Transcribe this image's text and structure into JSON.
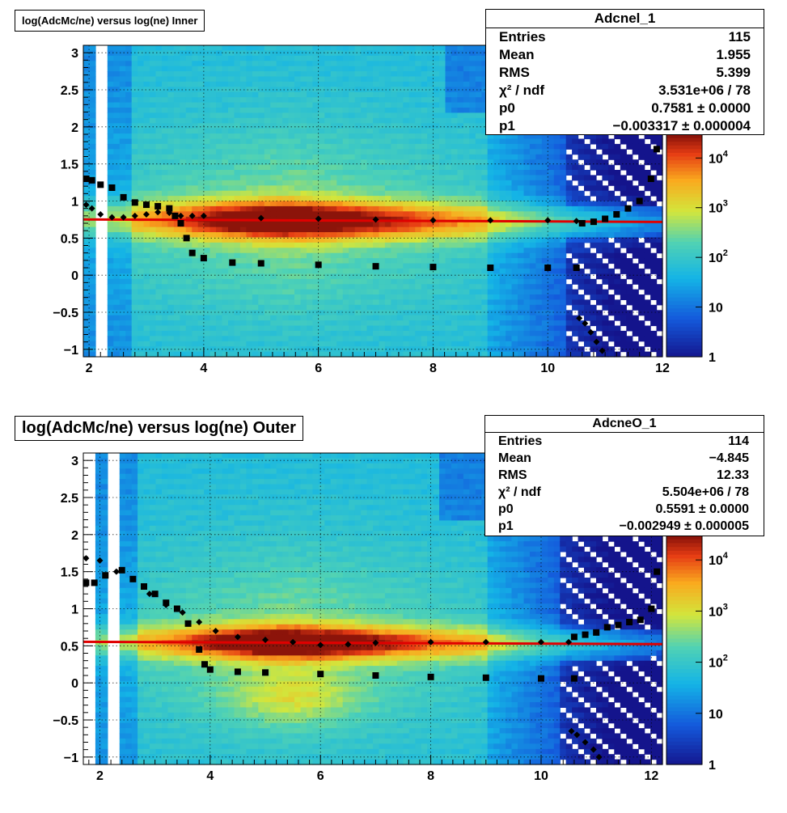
{
  "pads": [
    {
      "id": "inner",
      "title": "log(AdcMc/ne) versus log(ne) Inner",
      "stats": {
        "name": "Adcnel_1",
        "rows": [
          {
            "key": "Entries",
            "value": "115"
          },
          {
            "key": "Mean",
            "value": "1.955"
          },
          {
            "key": "RMS",
            "value": "5.399"
          },
          {
            "key": "χ² / ndf",
            "value": "3.531e+06 / 78"
          },
          {
            "key": "p0",
            "value": "0.7581 ± 0.0000"
          },
          {
            "key": "p1",
            "value": "−0.003317 ± 0.000004"
          }
        ]
      }
    },
    {
      "id": "outer",
      "title": "log(AdcMc/ne) versus log(ne) Outer",
      "stats": {
        "name": "AdcneO_1",
        "rows": [
          {
            "key": "Entries",
            "value": "114"
          },
          {
            "key": "Mean",
            "value": "−4.845"
          },
          {
            "key": "RMS",
            "value": "12.33"
          },
          {
            "key": "χ² / ndf",
            "value": "5.504e+06 / 78"
          },
          {
            "key": "p0",
            "value": "0.5591 ± 0.0000"
          },
          {
            "key": "p1",
            "value": "−0.002949 ± 0.000005"
          }
        ]
      }
    }
  ],
  "chart_data": [
    {
      "type": "heatmap",
      "title": "log(AdcMc/ne) versus log(ne) Inner",
      "xlim": [
        1.9,
        12.0
      ],
      "ylim": [
        -1.1,
        3.1
      ],
      "x_ticks": [
        "2",
        "4",
        "6",
        "8",
        "10",
        "12"
      ],
      "y_ticks": [
        "3",
        "2.5",
        "2",
        "1.5",
        "1",
        "0.5",
        "0",
        "−0.5",
        "−1"
      ],
      "colorbar": {
        "scale": "log",
        "range": [
          1,
          30000
        ],
        "tick_labels": [
          "1",
          "10",
          "10²",
          "10³",
          "10⁴"
        ]
      },
      "grid": true,
      "fit": {
        "function": "pol1",
        "p0": 0.7581,
        "p1": -0.003317,
        "color": "#e00000"
      },
      "series": [
        {
          "marker": "square",
          "x": [
            1.95,
            2.05,
            2.2,
            2.4,
            2.6,
            2.8,
            3.0,
            3.2,
            3.4,
            3.5,
            3.6,
            3.7,
            3.8,
            4.0,
            4.5,
            5.0,
            6.0,
            7.0,
            8.0,
            9.0,
            10.0,
            10.5
          ],
          "y": [
            1.3,
            1.28,
            1.22,
            1.18,
            1.05,
            0.98,
            0.95,
            0.93,
            0.9,
            0.8,
            0.7,
            0.5,
            0.3,
            0.23,
            0.17,
            0.16,
            0.14,
            0.12,
            0.11,
            0.1,
            0.1,
            0.1
          ]
        },
        {
          "marker": "diamond",
          "x": [
            1.95,
            2.05,
            2.2,
            2.4,
            2.6,
            2.8,
            3.0,
            3.2,
            3.4,
            3.6,
            3.8,
            4.0,
            5.0,
            6.0,
            7.0,
            8.0,
            9.0,
            10.0,
            10.5
          ],
          "y": [
            0.95,
            0.9,
            0.82,
            0.78,
            0.78,
            0.8,
            0.82,
            0.85,
            0.84,
            0.8,
            0.8,
            0.8,
            0.77,
            0.76,
            0.75,
            0.74,
            0.74,
            0.74,
            0.73
          ]
        },
        {
          "marker": "square",
          "x": [
            10.6,
            10.8,
            11.0,
            11.2,
            11.4,
            11.6,
            11.8,
            11.9
          ],
          "y": [
            0.7,
            0.72,
            0.76,
            0.82,
            0.9,
            1.0,
            1.3,
            1.7
          ]
        },
        {
          "marker": "diamond",
          "x": [
            10.55,
            10.65,
            10.75,
            10.85,
            10.95
          ],
          "y": [
            -0.58,
            -0.65,
            -0.77,
            -0.9,
            -1.02
          ]
        }
      ]
    },
    {
      "type": "heatmap",
      "title": "log(AdcMc/ne) versus log(ne) Outer",
      "xlim": [
        1.7,
        12.2
      ],
      "ylim": [
        -1.1,
        3.1
      ],
      "x_ticks": [
        "2",
        "4",
        "6",
        "8",
        "10",
        "12"
      ],
      "y_ticks": [
        "3",
        "2.5",
        "2",
        "1.5",
        "1",
        "0.5",
        "0",
        "−0.5",
        "−1"
      ],
      "colorbar": {
        "scale": "log",
        "range": [
          1,
          30000
        ],
        "tick_labels": [
          "1",
          "10",
          "10²",
          "10³",
          "10⁴"
        ]
      },
      "grid": true,
      "fit": {
        "function": "pol1",
        "p0": 0.5591,
        "p1": -0.002949,
        "color": "#e00000"
      },
      "series": [
        {
          "marker": "square",
          "x": [
            1.75,
            1.9,
            2.1,
            2.4,
            2.6,
            2.8,
            3.0,
            3.2,
            3.4,
            3.6,
            3.8,
            3.9,
            4.0,
            4.5,
            5.0,
            6.0,
            7.0,
            8.0,
            9.0,
            10.0,
            10.6
          ],
          "y": [
            1.35,
            1.35,
            1.45,
            1.52,
            1.4,
            1.3,
            1.2,
            1.08,
            1.0,
            0.8,
            0.45,
            0.25,
            0.18,
            0.15,
            0.14,
            0.12,
            0.1,
            0.08,
            0.07,
            0.06,
            0.06
          ]
        },
        {
          "marker": "diamond",
          "x": [
            1.75,
            2.0,
            2.3,
            2.6,
            2.9,
            3.2,
            3.5,
            3.8,
            4.1,
            4.5,
            5.0,
            5.5,
            6.0,
            6.5,
            7.0,
            8.0,
            9.0,
            10.0,
            10.5
          ],
          "y": [
            1.68,
            1.65,
            1.5,
            1.4,
            1.2,
            1.05,
            0.95,
            0.82,
            0.7,
            0.62,
            0.58,
            0.55,
            0.51,
            0.52,
            0.54,
            0.55,
            0.55,
            0.55,
            0.55
          ]
        },
        {
          "marker": "square",
          "x": [
            10.6,
            10.8,
            11.0,
            11.2,
            11.4,
            11.6,
            11.8,
            12.0,
            12.1
          ],
          "y": [
            0.62,
            0.65,
            0.68,
            0.75,
            0.78,
            0.82,
            0.85,
            1.0,
            1.5
          ]
        },
        {
          "marker": "diamond",
          "x": [
            10.55,
            10.65,
            10.8,
            10.95,
            11.05
          ],
          "y": [
            -0.65,
            -0.7,
            -0.8,
            -0.9,
            -1.0
          ]
        }
      ]
    }
  ]
}
